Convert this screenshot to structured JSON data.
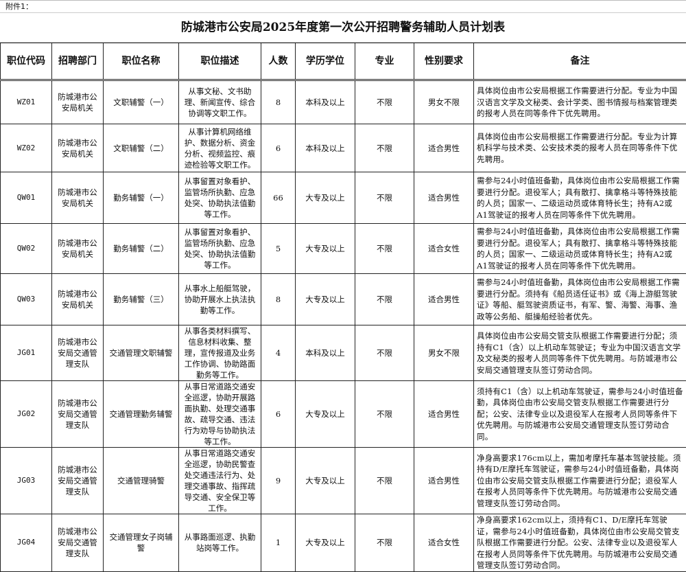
{
  "attachment_label": "附件1：",
  "title": "防城港市公安局2025年度第一次公开招聘警务辅助人员计划表",
  "columns": [
    "职位代码",
    "招聘部门",
    "职位名称",
    "职位描述",
    "人数",
    "学历学位",
    "专业",
    "性别要求",
    "备注"
  ],
  "rows": [
    {
      "code": "WZ01",
      "dept": "防城港市公安局机关",
      "name": "文职辅警（一）",
      "desc": "从事文秘、文书助理、新闻宣传、综合协调等文职工作。",
      "count": "8",
      "edu": "本科及以上",
      "major": "不限",
      "gender": "男女不限",
      "note": "具体岗位由市公安局根据工作需要进行分配。专业为中国汉语言文学及文秘类、会计学类、图书情报与档案管理类的报考人员在同等条件下优先聘用。"
    },
    {
      "code": "WZ02",
      "dept": "防城港市公安局机关",
      "name": "文职辅警（二）",
      "desc": "从事计算机网络维护、数据分析、资金分析、视频监控、痕迹检验等文职工作。",
      "count": "6",
      "edu": "本科及以上",
      "major": "不限",
      "gender": "适合男性",
      "note": "具体岗位由市公安局根据工作需要进行分配。专业为计算机科学与技术类、公安技术类的报考人员在同等条件下优先聘用。"
    },
    {
      "code": "QW01",
      "dept": "防城港市公安局机关",
      "name": "勤务辅警（一）",
      "desc": "从事留置对象看护、监管场所执勤、应急处突、协助执法值勤等工作。",
      "count": "66",
      "edu": "大专及以上",
      "major": "不限",
      "gender": "适合男性",
      "note": "需参与24小时值班备勤，具体岗位由市公安局根据工作需要进行分配。退役军人；具有散打、擒拿格斗等特殊技能的人员；国家一、二级运动员或体育特长生；持有A2或A1驾驶证的报考人员在同等条件下优先聘用。"
    },
    {
      "code": "QW02",
      "dept": "防城港市公安局机关",
      "name": "勤务辅警（二）",
      "desc": "从事留置对象看护、监管场所执勤、应急处突、协助执法值勤等工作。",
      "count": "5",
      "edu": "大专及以上",
      "major": "不限",
      "gender": "适合女性",
      "note": "需参与24小时值班备勤，具体岗位由市公安局根据工作需要进行分配。退役军人；具有散打、擒拿格斗等特殊技能的人员；国家一、二级运动员或体育特长生；持有A2或A1驾驶证的报考人员在同等条件下优先聘用。"
    },
    {
      "code": "QW03",
      "dept": "防城港市公安局机关",
      "name": "勤务辅警（三）",
      "desc": "从事水上船艇驾驶，协助开展水上执法执勤等工作。",
      "count": "8",
      "edu": "大专及以上",
      "major": "不限",
      "gender": "适合男性",
      "note": "需参与24小时值班备勤，具体岗位由市公安局根据工作需要进行分配。须持有《船员适任证书》或《海上游艇驾驶证》等船、艇驾驶资质证书，有军、警、海警、海事、渔政等公务船、艇操船经验者优先。"
    },
    {
      "code": "JG01",
      "dept": "防城港市公安局交通管理支队",
      "name": "交通管理文职辅警",
      "desc": "从事各类材料撰写、信息材料收集、整理，宣传报道及业务工作协调、协助路面勤务等工作。",
      "count": "4",
      "edu": "本科及以上",
      "major": "不限",
      "gender": "男女不限",
      "note": "具体岗位由市公安局交管支队根据工作需要进行分配；须持有C1（含）以上机动车驾驶证；专业为中国汉语言文学及文秘类的报考人员同等条件下优先聘用。与防城港市公安局交通管理支队签订劳动合同。"
    },
    {
      "code": "JG02",
      "dept": "防城港市公安局交通管理支队",
      "name": "交通管理勤务辅警",
      "desc": "从事日常道路交通安全巡逻，协助开展路面执勤、处理交通事故、疏导交通、违法行为劝导与协助执法等工作。",
      "count": "6",
      "edu": "大专及以上",
      "major": "不限",
      "gender": "适合男性",
      "note": "须持有C1（含）以上机动车驾驶证，需参与24小时值班备勤，具体岗位由市公安局交管支队根据工作需要进行分配；公安、法律专业以及退役军人在报考人员同等条件下优先聘用。与防城港市公安局交通管理支队签订劳动合同。"
    },
    {
      "code": "JG03",
      "dept": "防城港市公安局交通管理支队",
      "name": "交通管理骑警",
      "desc": "从事日常道路交通安全巡逻，协助民警查处交通违法行为、处理交通事故、指挥疏导交通、安全保卫等工作。",
      "count": "9",
      "edu": "大专及以上",
      "major": "不限",
      "gender": "适合男性",
      "note": "净身高要求176cm以上，需加考摩托车基本驾驶技能。须持有D/E摩托车驾驶证，需参与24小时值班备勤，具体岗位由市公安局交管支队根据工作需要进行分配；退役军人在报考人员同等条件下优先聘用。与防城港市公安局交通管理支队签订劳动合同。"
    },
    {
      "code": "JG04",
      "dept": "防城港市公安局交通管理支队",
      "name": "交通管理女子岗辅警",
      "desc": "从事路面巡逻、执勤站岗等工作。",
      "count": "1",
      "edu": "大专及以上",
      "major": "不限",
      "gender": "适合女性",
      "note": "净身高要求162cm以上，须持有C1、D/E摩托车驾驶证，需参与24小时值班备勤，具体岗位由市公安局交管支队根据工作需要进行分配。公安、法律专业以及退役军人在报考人员同等条件下优先聘用。与防城港市公安局交通管理支队签订劳动合同。"
    }
  ]
}
